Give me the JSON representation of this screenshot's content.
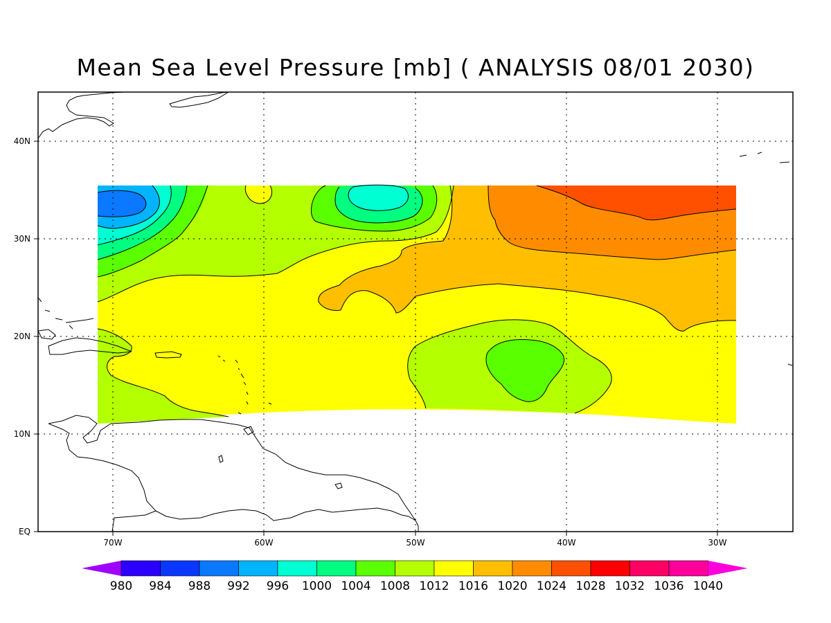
{
  "title": "Mean Sea Level Pressure [mb] ( ANALYSIS 08/01 2030)",
  "map": {
    "lon_ticks": [
      "70W",
      "60W",
      "50W",
      "40W",
      "30W"
    ],
    "lat_ticks": [
      "40N",
      "30N",
      "20N",
      "10N",
      "EQ"
    ],
    "lon_range": [
      -75,
      -25
    ],
    "lat_range": [
      0,
      45
    ]
  },
  "colorbar": {
    "labels": [
      "980",
      "984",
      "988",
      "992",
      "996",
      "1000",
      "1004",
      "1008",
      "1012",
      "1016",
      "1020",
      "1024",
      "1028",
      "1032",
      "1036",
      "1040"
    ],
    "colors": [
      "#a000ff",
      "#2b00ff",
      "#0a37ff",
      "#0a78ff",
      "#00b4ff",
      "#00ffd2",
      "#00ff80",
      "#5aff00",
      "#b4ff00",
      "#ffff00",
      "#ffbe00",
      "#ff8c00",
      "#ff5000",
      "#ff0000",
      "#ff0064",
      "#ff009b",
      "#ff00dc"
    ]
  },
  "field_colors": {
    "c996": "#00ffd2",
    "c992": "#00b4ff",
    "c988": "#0a78ff",
    "c1000": "#00ff80",
    "c1004": "#5aff00",
    "c1008": "#b4ff00",
    "c1012": "#ffff00",
    "c1016": "#ffbe00",
    "c1020": "#ff8c00",
    "c1024": "#ff5000"
  }
}
